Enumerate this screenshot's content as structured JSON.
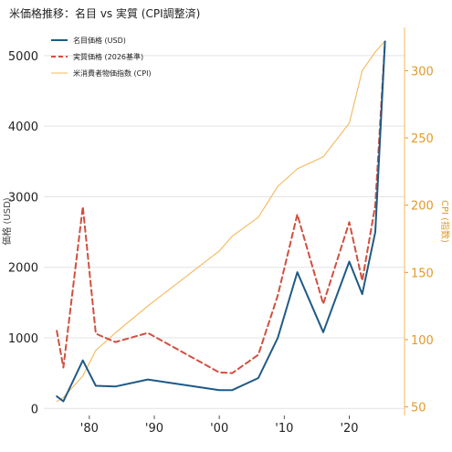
{
  "chart_data": {
    "type": "line",
    "title": "米価格推移：名目 vs 実質 (CPI調整済)",
    "ylabel_left": "価格 (USD)",
    "ylabel_right": "CPI (指数)",
    "xlim": [
      1973,
      2028.5
    ],
    "ylim_left": [
      -100,
      5400
    ],
    "ylim_right": [
      43.6,
      332.2
    ],
    "x_ticks": [
      1980,
      1990,
      2000,
      2010,
      2020
    ],
    "x_tick_labels": [
      "'80",
      "'90",
      "'00",
      "'10",
      "'20"
    ],
    "y_ticks_left": [
      0,
      1000,
      2000,
      3000,
      4000,
      5000
    ],
    "y_tick_labels_left": [
      "0",
      "1000",
      "2000",
      "3000",
      "4000",
      "5000"
    ],
    "y_ticks_right": [
      50,
      100,
      150,
      200,
      250,
      300
    ],
    "y_tick_labels_right": [
      "50",
      "100",
      "150",
      "200",
      "250",
      "300"
    ],
    "grid": true,
    "legend_position": "top-left",
    "series": [
      {
        "name": "名目価格 (USD)",
        "axis": "left",
        "color": "#1f5a85",
        "style": "solid",
        "x": [
          1975,
          1976,
          1979,
          1981,
          1984,
          1989,
          2000,
          2002,
          2006,
          2009,
          2012,
          2016,
          2020,
          2022,
          2024,
          2025.5
        ],
        "y": [
          170,
          100,
          680,
          320,
          310,
          410,
          260,
          260,
          430,
          1000,
          1930,
          1080,
          2080,
          1620,
          2500,
          5200
        ]
      },
      {
        "name": "実質価格 (2026基準)",
        "axis": "left",
        "color": "#d0503f",
        "style": "dashed",
        "x": [
          1975,
          1976,
          1979,
          1981,
          1984,
          1989,
          2000,
          2002,
          2006,
          2009,
          2012,
          2016,
          2020,
          2022,
          2024,
          2025.5
        ],
        "y": [
          1100,
          580,
          2860,
          1060,
          940,
          1070,
          510,
          500,
          760,
          1600,
          2750,
          1480,
          2640,
          1810,
          2880,
          5200
        ]
      },
      {
        "name": "米消費者物価指数 (CPI)",
        "axis": "right",
        "color": "#f4b85a",
        "style": "solid",
        "x": [
          1975,
          1976,
          1979,
          1981,
          1984,
          1989,
          2000,
          2002,
          2006,
          2009,
          2012,
          2016,
          2020,
          2022,
          2024,
          2025.5
        ],
        "y": [
          54,
          57,
          73,
          92,
          105,
          125,
          166,
          177,
          191,
          214,
          227,
          236,
          261,
          300,
          314,
          322
        ]
      }
    ]
  }
}
